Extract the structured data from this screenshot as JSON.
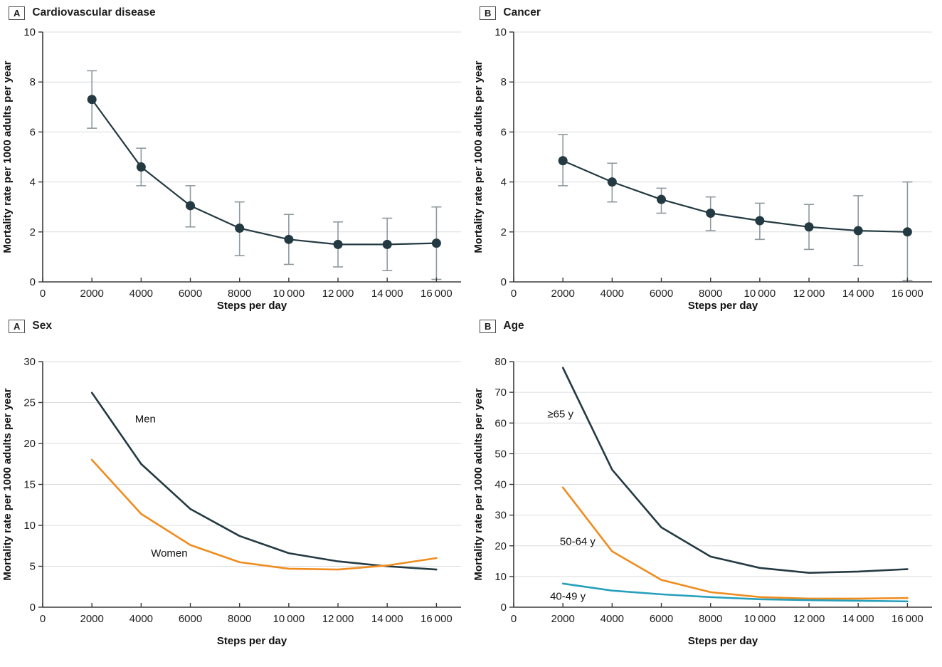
{
  "figure": {
    "background": "#ffffff",
    "axis_color": "#3a3a3a",
    "grid_color": "#dadcde",
    "text_color": "#222222",
    "error_bar_color": "#8f999e",
    "dark_series_color": "#243a42",
    "orange_series_color": "#ef8c1e",
    "blue_series_color": "#27a0bc"
  },
  "chart_data": [
    {
      "type": "line",
      "panel_letter": "A",
      "panel_title": "Cardiovascular disease",
      "xlabel": "Steps per day",
      "ylabel": "Mortality rate per 1000 adults per year",
      "x": [
        2000,
        4000,
        6000,
        8000,
        10000,
        12000,
        14000,
        16000
      ],
      "xlim": [
        0,
        17000
      ],
      "ylim": [
        0,
        10
      ],
      "grid": true,
      "legend": "none",
      "xticks": {
        "values": [
          0,
          2000,
          4000,
          6000,
          8000,
          10000,
          12000,
          14000,
          16000
        ],
        "labels": [
          "0",
          "2000",
          "4000",
          "6000",
          "8000",
          "10 000",
          "12 000",
          "14 000",
          "16 000"
        ]
      },
      "yticks": [
        0,
        2,
        4,
        6,
        8,
        10
      ],
      "stroke_width": 2.2,
      "series": [
        {
          "name": "",
          "color": "#243a42",
          "markers": true,
          "values": [
            7.3,
            4.6,
            3.05,
            2.15,
            1.7,
            1.5,
            1.5,
            1.55
          ],
          "ci_low": [
            6.15,
            3.85,
            2.2,
            1.05,
            0.7,
            0.6,
            0.45,
            0.1
          ],
          "ci_high": [
            8.45,
            5.35,
            3.85,
            3.2,
            2.7,
            2.4,
            2.55,
            3.0
          ]
        }
      ],
      "annotations": []
    },
    {
      "type": "line",
      "panel_letter": "B",
      "panel_title": "Cancer",
      "xlabel": "Steps per day",
      "ylabel": "Mortality rate per 1000 adults per year",
      "x": [
        2000,
        4000,
        6000,
        8000,
        10000,
        12000,
        14000,
        16000
      ],
      "xlim": [
        0,
        17000
      ],
      "ylim": [
        0,
        10
      ],
      "grid": true,
      "legend": "none",
      "xticks": {
        "values": [
          0,
          2000,
          4000,
          6000,
          8000,
          10000,
          12000,
          14000,
          16000
        ],
        "labels": [
          "0",
          "2000",
          "4000",
          "6000",
          "8000",
          "10 000",
          "12 000",
          "14 000",
          "16 000"
        ]
      },
      "yticks": [
        0,
        2,
        4,
        6,
        8,
        10
      ],
      "stroke_width": 2.2,
      "series": [
        {
          "name": "",
          "color": "#243a42",
          "markers": true,
          "values": [
            4.85,
            4.0,
            3.3,
            2.75,
            2.45,
            2.2,
            2.05,
            2.0
          ],
          "ci_low": [
            3.85,
            3.2,
            2.75,
            2.05,
            1.7,
            1.3,
            0.65,
            0.05
          ],
          "ci_high": [
            5.9,
            4.75,
            3.75,
            3.4,
            3.15,
            3.1,
            3.45,
            4.0
          ]
        }
      ],
      "annotations": []
    },
    {
      "type": "line",
      "panel_letter": "A",
      "panel_title": "Sex",
      "xlabel": "Steps per day",
      "ylabel": "Mortality rate per 1000 adults per year",
      "x": [
        2000,
        4000,
        6000,
        8000,
        10000,
        12000,
        14000,
        16000
      ],
      "xlim": [
        0,
        17000
      ],
      "ylim": [
        0,
        30
      ],
      "grid": true,
      "legend": "inline-labels",
      "xticks": {
        "values": [
          0,
          2000,
          4000,
          6000,
          8000,
          10000,
          12000,
          14000,
          16000
        ],
        "labels": [
          "0",
          "2000",
          "4000",
          "6000",
          "8000",
          "10 000",
          "12 000",
          "14 000",
          "16 000"
        ]
      },
      "yticks": [
        0,
        5,
        10,
        15,
        20,
        25,
        30
      ],
      "stroke_width": 2.6,
      "series": [
        {
          "name": "Men",
          "color": "#243a42",
          "markers": false,
          "values": [
            26.2,
            17.5,
            12.0,
            8.7,
            6.6,
            5.6,
            5.0,
            4.6
          ]
        },
        {
          "name": "Women",
          "color": "#ef8c1e",
          "markers": false,
          "values": [
            18.0,
            11.4,
            7.6,
            5.5,
            4.7,
            4.6,
            5.1,
            6.0
          ]
        }
      ],
      "annotations": [
        {
          "text": "Men",
          "x": 3750,
          "y": 23.0,
          "anchor": "start"
        },
        {
          "text": "Women",
          "x": 4400,
          "y": 6.6,
          "anchor": "start"
        }
      ]
    },
    {
      "type": "line",
      "panel_letter": "B",
      "panel_title": "Age",
      "xlabel": "Steps per day",
      "ylabel": "Mortality rate per 1000 adults per year",
      "x": [
        2000,
        4000,
        6000,
        8000,
        10000,
        12000,
        14000,
        16000
      ],
      "xlim": [
        0,
        17000
      ],
      "ylim": [
        0,
        80
      ],
      "grid": true,
      "legend": "inline-labels",
      "xticks": {
        "values": [
          0,
          2000,
          4000,
          6000,
          8000,
          10000,
          12000,
          14000,
          16000
        ],
        "labels": [
          "0",
          "2000",
          "4000",
          "6000",
          "8000",
          "10 000",
          "12 000",
          "14 000",
          "16 000"
        ]
      },
      "yticks": [
        0,
        10,
        20,
        30,
        40,
        50,
        60,
        70,
        80
      ],
      "stroke_width": 2.6,
      "series": [
        {
          "name": "≥65 y",
          "color": "#243a42",
          "markers": false,
          "values": [
            78,
            44.8,
            26,
            16.5,
            12.8,
            11.2,
            11.6,
            12.4
          ]
        },
        {
          "name": "50-64 y",
          "color": "#ef8c1e",
          "markers": false,
          "values": [
            39,
            18.2,
            8.9,
            4.9,
            3.3,
            2.8,
            2.8,
            3.0
          ]
        },
        {
          "name": "40-49 y",
          "color": "#27a0bc",
          "markers": false,
          "values": [
            7.7,
            5.4,
            4.2,
            3.3,
            2.6,
            2.3,
            2.1,
            1.9
          ]
        }
      ],
      "annotations": [
        {
          "text": "≥65 y",
          "x": 1900,
          "y": 63.0,
          "anchor": "middle"
        },
        {
          "text": "50-64 y",
          "x": 2600,
          "y": 21.5,
          "anchor": "middle"
        },
        {
          "text": "40-49 y",
          "x": 2200,
          "y": 3.6,
          "anchor": "middle"
        }
      ]
    }
  ]
}
